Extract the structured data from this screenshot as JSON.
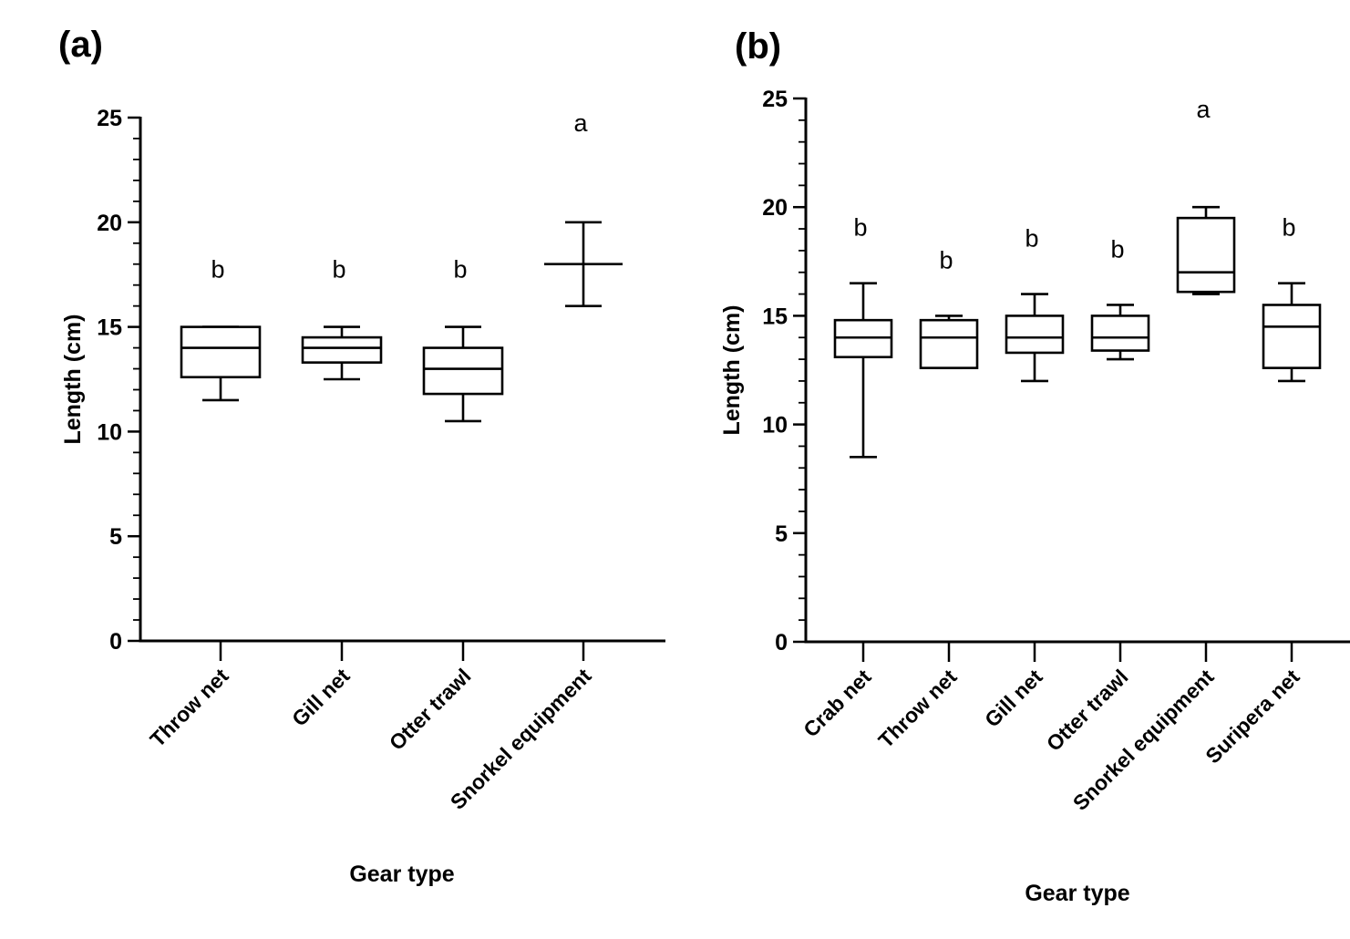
{
  "chart_data": [
    {
      "type": "box",
      "panel_label": "(a)",
      "xlabel": "Gear type",
      "ylabel": "Length (cm)",
      "ylim": [
        0,
        25
      ],
      "yticks": [
        0,
        5,
        10,
        15,
        20,
        25
      ],
      "minor_tick_step": 1,
      "categories": [
        "Throw net",
        "Gill net",
        "Otter trawl",
        "Snorkel equipment"
      ],
      "boxes": [
        {
          "min": 11.5,
          "q1": 12.6,
          "median": 14,
          "q3": 15,
          "max": 15,
          "group": "b"
        },
        {
          "min": 12.5,
          "q1": 13.3,
          "median": 14,
          "q3": 14.5,
          "max": 15,
          "group": "b"
        },
        {
          "min": 10.5,
          "q1": 11.8,
          "median": 13,
          "q3": 14,
          "max": 15,
          "group": "b"
        },
        {
          "min": 16,
          "q1": 18,
          "median": 18,
          "q3": 18,
          "max": 20,
          "group": "a"
        }
      ]
    },
    {
      "type": "box",
      "panel_label": "(b)",
      "xlabel": "Gear type",
      "ylabel": "Length (cm)",
      "ylim": [
        0,
        25
      ],
      "yticks": [
        0,
        5,
        10,
        15,
        20,
        25
      ],
      "minor_tick_step": 1,
      "categories": [
        "Crab net",
        "Throw net",
        "Gill net",
        "Otter trawl",
        "Snorkel equipment",
        "Suripera net"
      ],
      "boxes": [
        {
          "min": 8.5,
          "q1": 13.1,
          "median": 14,
          "q3": 14.8,
          "max": 16.5,
          "group": "b"
        },
        {
          "min": 12.6,
          "q1": 12.6,
          "median": 14,
          "q3": 14.8,
          "max": 15,
          "group": "b"
        },
        {
          "min": 12,
          "q1": 13.3,
          "median": 14,
          "q3": 15,
          "max": 16,
          "group": "b"
        },
        {
          "min": 13,
          "q1": 13.4,
          "median": 14,
          "q3": 15,
          "max": 15.5,
          "group": "b"
        },
        {
          "min": 16,
          "q1": 16.1,
          "median": 17,
          "q3": 19.5,
          "max": 20,
          "group": "a"
        },
        {
          "min": 12,
          "q1": 12.6,
          "median": 14.5,
          "q3": 15.5,
          "max": 16.5,
          "group": "b"
        }
      ]
    }
  ]
}
